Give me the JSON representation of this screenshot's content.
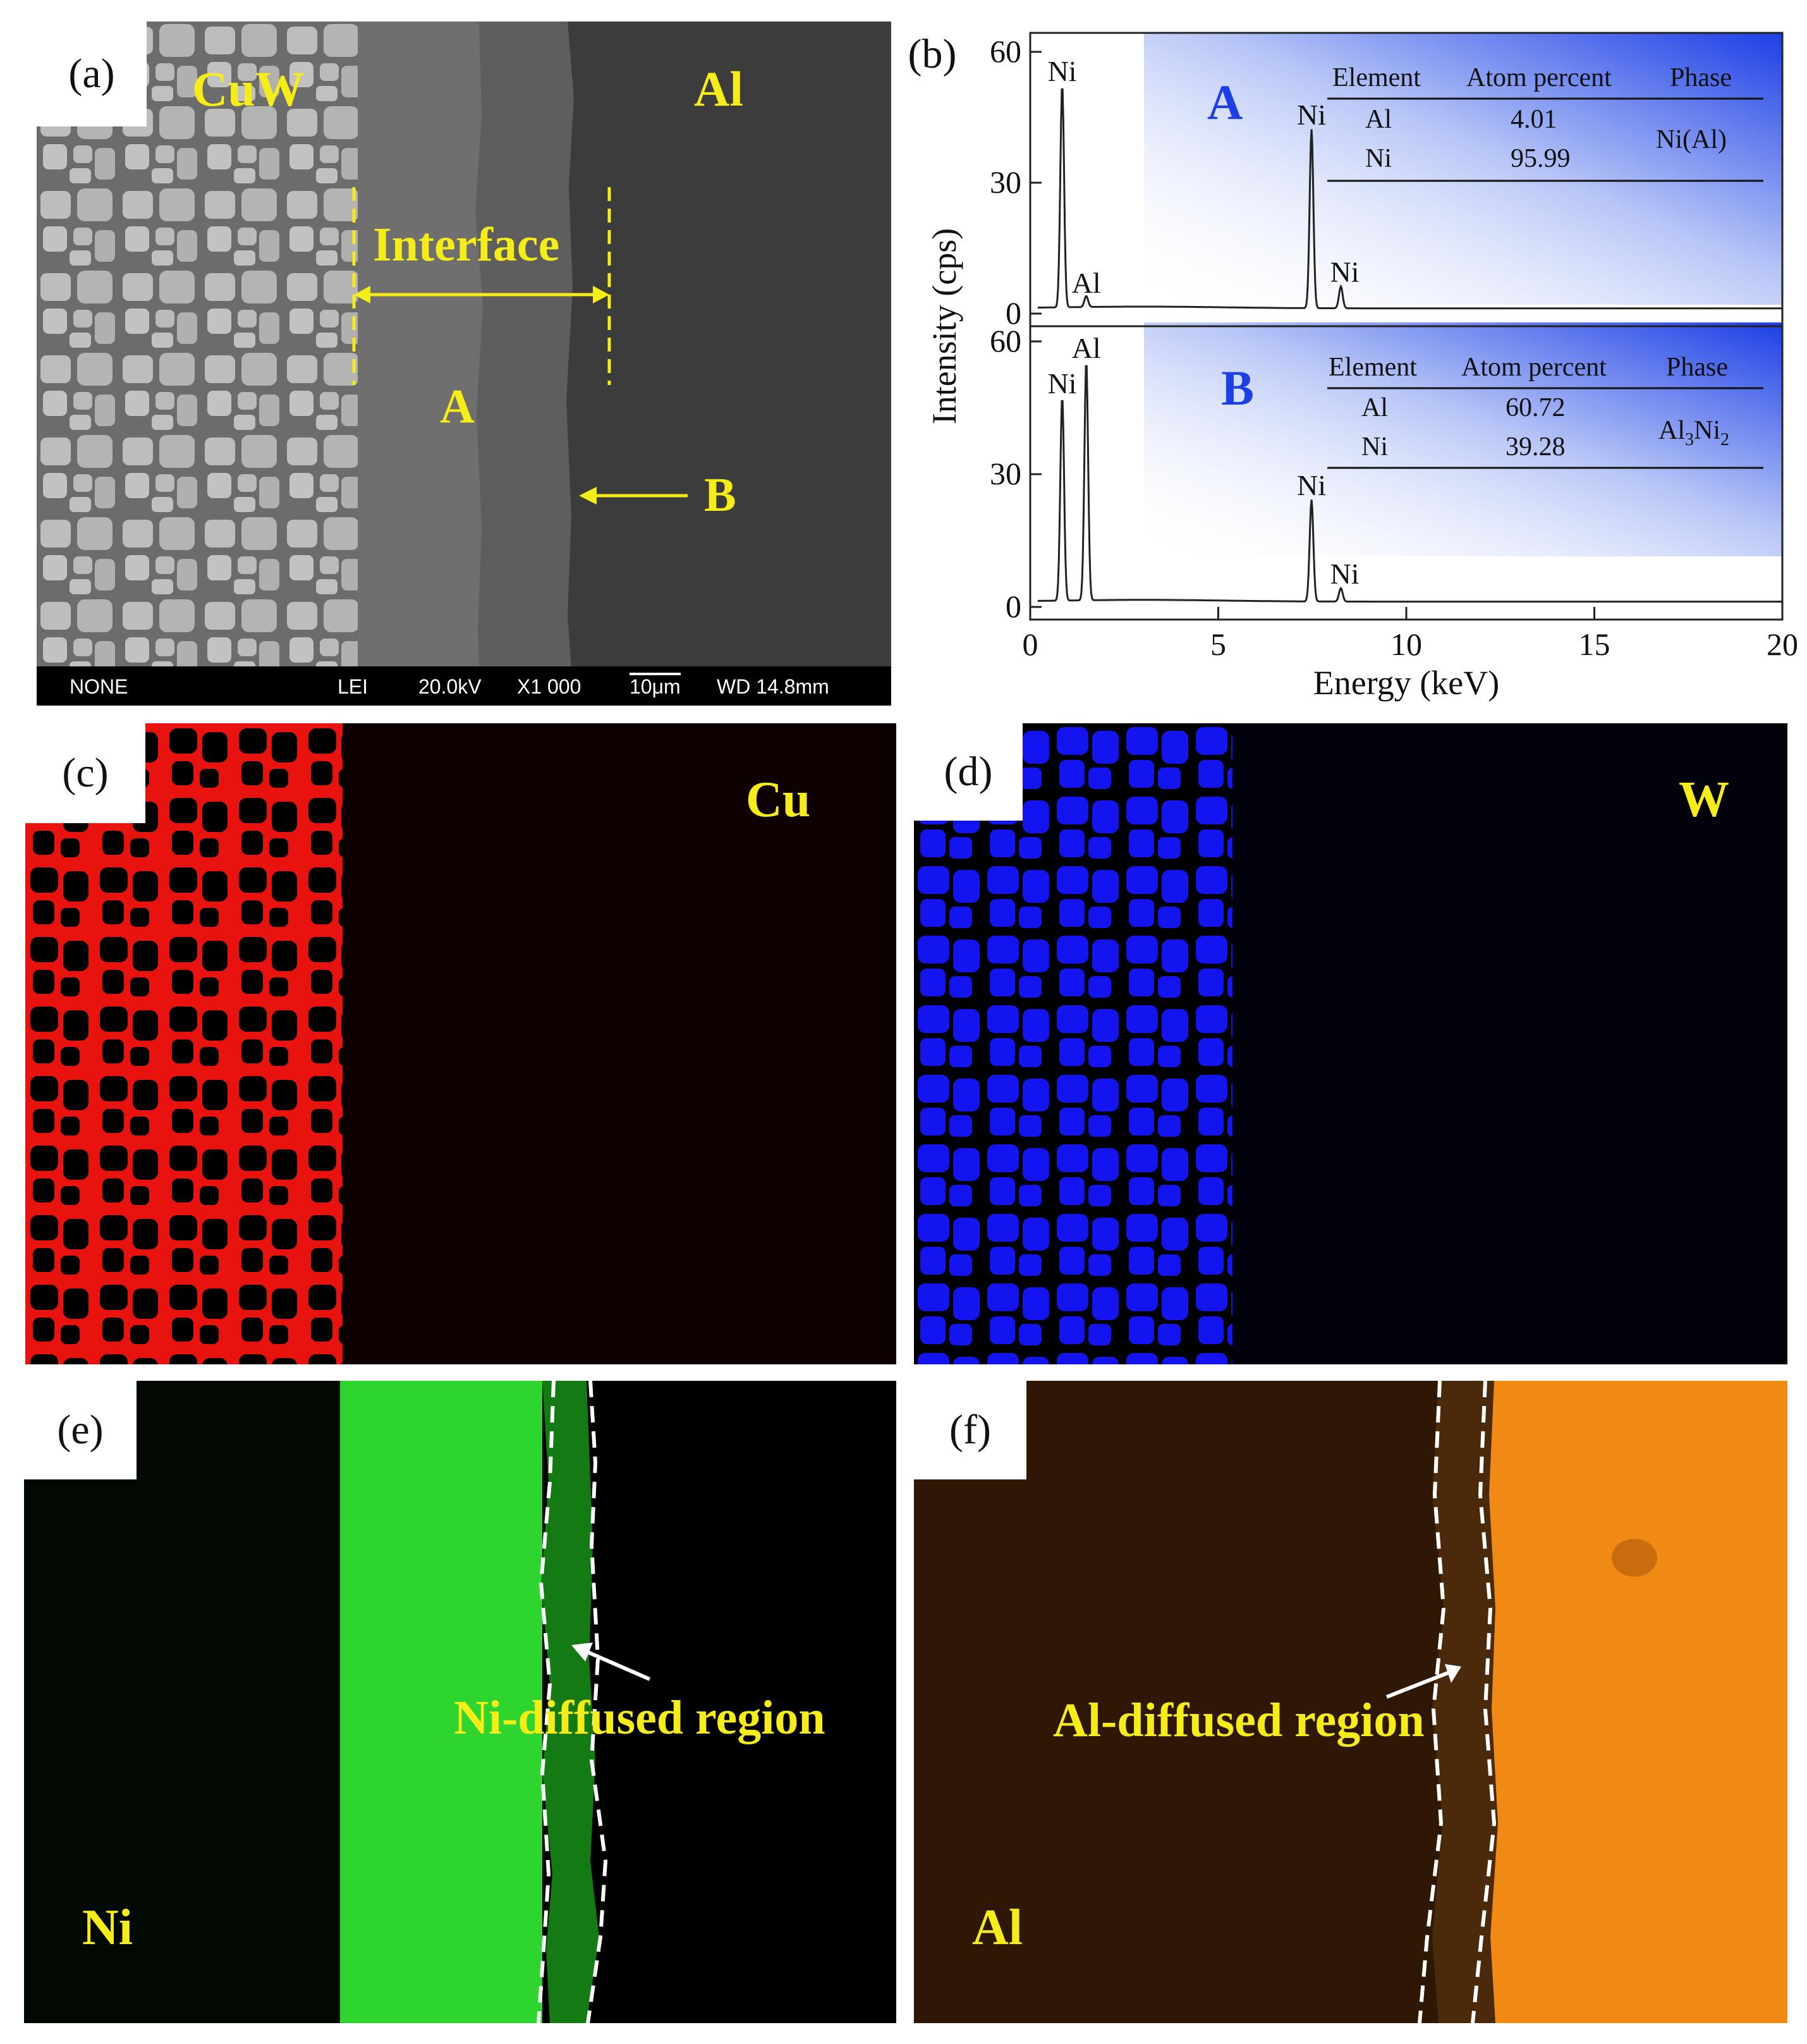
{
  "panel_a": {
    "label": "(a)",
    "regions": {
      "cuw": "CuW",
      "al": "Al",
      "interface": "Interface",
      "a": "A",
      "b": "B"
    },
    "info_bar": {
      "detector": "NONE",
      "mode": "LEI",
      "voltage": "20.0kV",
      "magnification": "X1 000",
      "scale": "10μm",
      "wd": "WD 14.8mm"
    }
  },
  "panel_b": {
    "label": "(b)",
    "top": {
      "point_label": "A",
      "table_headers": [
        "Element",
        "Atom percent",
        "Phase"
      ],
      "rows": [
        {
          "element": "Al",
          "atom_percent": "4.01"
        },
        {
          "element": "Ni",
          "atom_percent": "95.99"
        }
      ],
      "phase": "Ni(Al)"
    },
    "bottom": {
      "point_label": "B",
      "table_headers": [
        "Element",
        "Atom percent",
        "Phase"
      ],
      "rows": [
        {
          "element": "Al",
          "atom_percent": "60.72"
        },
        {
          "element": "Ni",
          "atom_percent": "39.28"
        }
      ],
      "phase": {
        "main1": "Al",
        "sub1": "3",
        "main2": "Ni",
        "sub2": "2"
      }
    },
    "colors": {
      "accent": "#1c3fe6"
    }
  },
  "panel_c": {
    "label": "(c)",
    "element": "Cu",
    "color": "#e8120e"
  },
  "panel_d": {
    "label": "(d)",
    "element": "W",
    "color": "#1414f0"
  },
  "panel_e": {
    "label": "(e)",
    "element": "Ni",
    "annotation": "Ni-diffused region",
    "color": "#2fd52f"
  },
  "panel_f": {
    "label": "(f)",
    "element": "Al",
    "annotation": "Al-diffused region",
    "color": "#f08a14"
  },
  "chart_data": {
    "type": "line",
    "xlabel": "Energy (keV)",
    "ylabel": "Intensity (cps)",
    "xlim": [
      0,
      20
    ],
    "xticks": [
      0,
      5,
      10,
      15,
      20
    ],
    "yticks": [
      0,
      30,
      60
    ],
    "series": [
      {
        "name": "A",
        "ylim": [
          0,
          60
        ],
        "peaks": [
          {
            "label": "Ni",
            "energy": 0.85,
            "intensity": 51
          },
          {
            "label": "Al",
            "energy": 1.49,
            "intensity": 2.5
          },
          {
            "label": "Ni",
            "energy": 7.48,
            "intensity": 41
          },
          {
            "label": "Ni",
            "energy": 8.26,
            "intensity": 5
          }
        ]
      },
      {
        "name": "B",
        "ylim": [
          0,
          60
        ],
        "peaks": [
          {
            "label": "Ni",
            "energy": 0.85,
            "intensity": 46
          },
          {
            "label": "Al",
            "energy": 1.49,
            "intensity": 54
          },
          {
            "label": "Ni",
            "energy": 7.48,
            "intensity": 23
          },
          {
            "label": "Ni",
            "energy": 8.26,
            "intensity": 3
          }
        ]
      }
    ]
  }
}
